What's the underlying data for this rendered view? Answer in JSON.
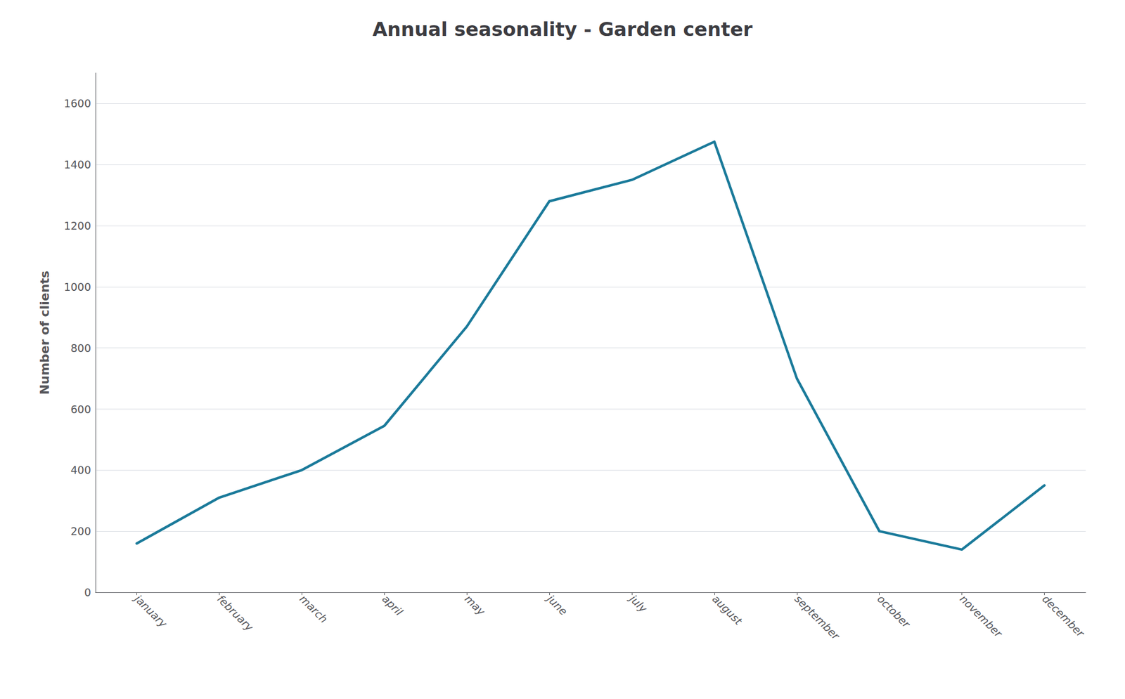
{
  "chart_data": {
    "type": "line",
    "title": "Annual seasonality - Garden center",
    "ylabel": "Number of clients",
    "categories": [
      "january",
      "february",
      "march",
      "april",
      "may",
      "june",
      "july",
      "august",
      "september",
      "october",
      "november",
      "december"
    ],
    "values": [
      160,
      310,
      400,
      545,
      870,
      1280,
      1350,
      1475,
      700,
      200,
      140,
      350
    ],
    "color": "#1a7a9a",
    "ylim": [
      0,
      1700
    ],
    "yticks": [
      0,
      200,
      400,
      600,
      800,
      1000,
      1200,
      1400,
      1600
    ],
    "grid": true
  }
}
